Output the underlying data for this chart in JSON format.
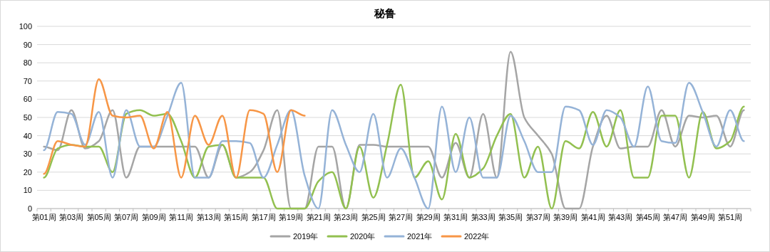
{
  "chart_data": {
    "type": "line",
    "title": "秘鲁",
    "categories": [
      "第01周",
      null,
      "第03周",
      null,
      "第05周",
      null,
      "第07周",
      null,
      "第09周",
      null,
      "第11周",
      null,
      "第13周",
      null,
      "第15周",
      null,
      "第17周",
      null,
      "第19周",
      null,
      "第21周",
      null,
      "第23周",
      null,
      "第25周",
      null,
      "第27周",
      null,
      "第29周",
      null,
      "第31周",
      null,
      "第33周",
      null,
      "第35周",
      null,
      "第37周",
      null,
      "第39周",
      null,
      "第41周",
      null,
      "第43周",
      null,
      "第45周",
      null,
      "第47周",
      null,
      "第49周",
      null,
      "第51周",
      null
    ],
    "series": [
      {
        "name": "2019年",
        "color": "#a5a5a5",
        "values": [
          34,
          32,
          54,
          33,
          37,
          54,
          17,
          34,
          34,
          34,
          34,
          34,
          17,
          35,
          17,
          20,
          32,
          54,
          0,
          0,
          34,
          34,
          0,
          35,
          35,
          34,
          34,
          34,
          34,
          17,
          36,
          17,
          52,
          17,
          86,
          50,
          40,
          30,
          0,
          0,
          34,
          51,
          33,
          34,
          34,
          54,
          34,
          51,
          50,
          51,
          34,
          54
        ]
      },
      {
        "name": "2020年",
        "color": "#92c050",
        "values": [
          17,
          33,
          35,
          34,
          34,
          20,
          52,
          54,
          51,
          52,
          37,
          17,
          34,
          35,
          17,
          17,
          17,
          0,
          0,
          0,
          15,
          20,
          0,
          34,
          6,
          35,
          68,
          17,
          26,
          5,
          41,
          17,
          22,
          40,
          52,
          17,
          34,
          0,
          37,
          33,
          53,
          34,
          54,
          17,
          17,
          51,
          51,
          17,
          53,
          33,
          37,
          56
        ]
      },
      {
        "name": "2021年",
        "color": "#95b3d7",
        "values": [
          32,
          53,
          52,
          35,
          53,
          17,
          54,
          34,
          34,
          51,
          69,
          17,
          17,
          37,
          37,
          36,
          17,
          35,
          54,
          18,
          0,
          54,
          35,
          20,
          52,
          17,
          33,
          17,
          0,
          56,
          20,
          50,
          17,
          17,
          51,
          37,
          20,
          20,
          56,
          54,
          35,
          54,
          50,
          34,
          67,
          37,
          36,
          69,
          53,
          34,
          54,
          37
        ]
      },
      {
        "name": "2022年",
        "color": "#f79646",
        "values": [
          19,
          37,
          35,
          34,
          71,
          51,
          50,
          51,
          33,
          53,
          17,
          51,
          35,
          51,
          17,
          54,
          52,
          20,
          54,
          51,
          null,
          null,
          null,
          null,
          null,
          null,
          null,
          null,
          null,
          null,
          null,
          null,
          null,
          null,
          null,
          null,
          null,
          null,
          null,
          null,
          null,
          null,
          null,
          null,
          null,
          null,
          null,
          null,
          null,
          null,
          null,
          null
        ]
      }
    ],
    "ylim": [
      0,
      100
    ],
    "yticks": [
      0,
      10,
      20,
      30,
      40,
      50,
      60,
      70,
      80,
      90,
      100
    ],
    "grid": "y",
    "legend": "bottom",
    "marker": "none",
    "line_style": "solid"
  }
}
